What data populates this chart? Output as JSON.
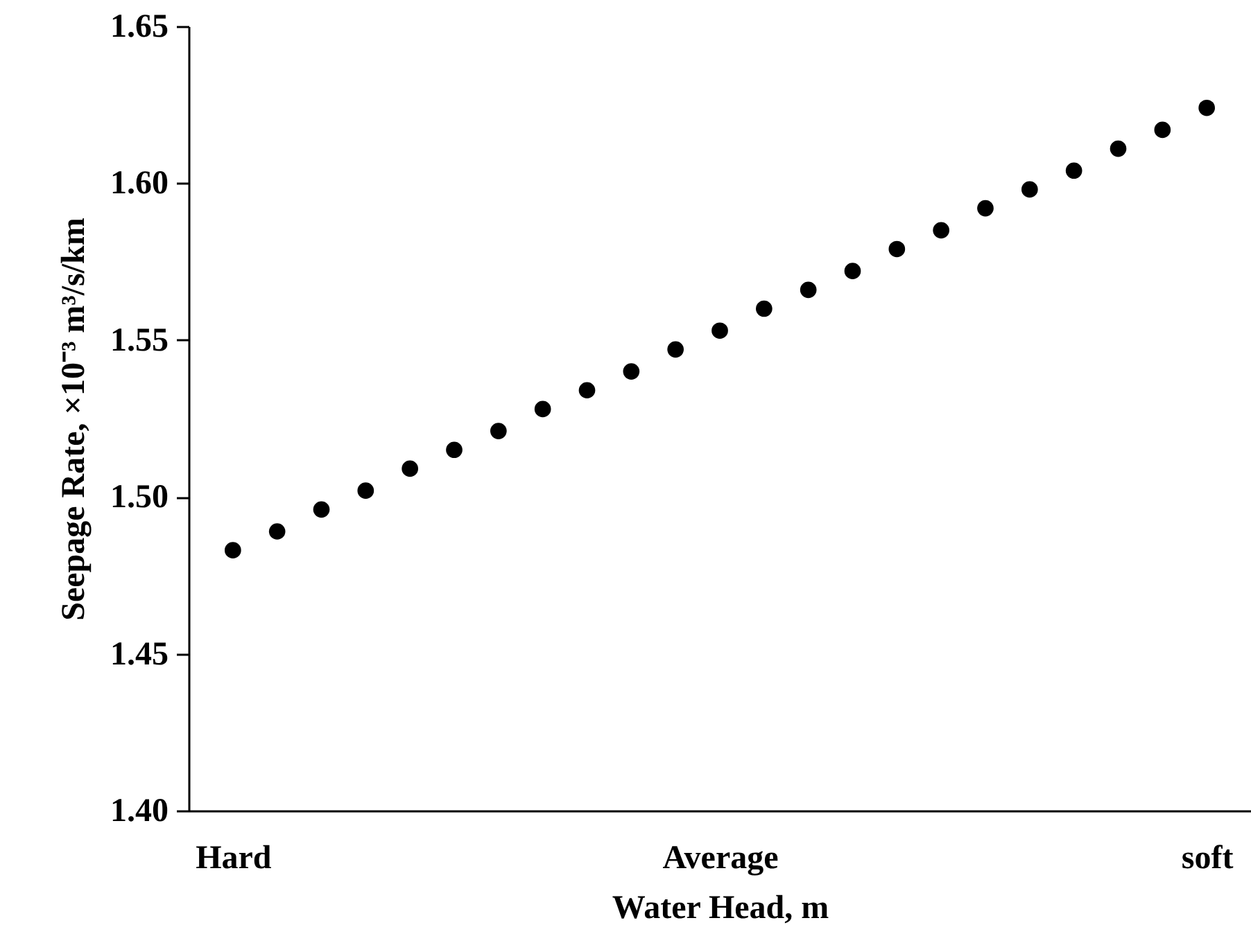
{
  "chart_data": {
    "type": "scatter",
    "xlabel": "Water Head, m",
    "ylabel": "Seepage Rate, ×10⁻³ m³/s/km",
    "marker": "circle",
    "grid": false,
    "categories": [
      "Hard",
      null,
      null,
      null,
      null,
      null,
      null,
      null,
      null,
      null,
      null,
      "Average",
      null,
      null,
      null,
      null,
      null,
      null,
      null,
      null,
      null,
      null,
      "soft"
    ],
    "ylim": [
      1.4,
      1.65
    ],
    "yticks": [
      {
        "value": 1.4,
        "label": "1.40"
      },
      {
        "value": 1.45,
        "label": "1.45"
      },
      {
        "value": 1.5,
        "label": "1.50"
      },
      {
        "value": 1.55,
        "label": "1.55"
      },
      {
        "value": 1.6,
        "label": "1.60"
      },
      {
        "value": 1.65,
        "label": "1.65"
      }
    ],
    "series": [
      {
        "color": "#000000",
        "values": [
          1.483,
          1.489,
          1.496,
          1.502,
          1.509,
          1.515,
          1.521,
          1.528,
          1.534,
          1.54,
          1.547,
          1.553,
          1.56,
          1.566,
          1.572,
          1.579,
          1.585,
          1.592,
          1.598,
          1.604,
          1.611,
          1.617,
          1.624
        ]
      }
    ]
  }
}
